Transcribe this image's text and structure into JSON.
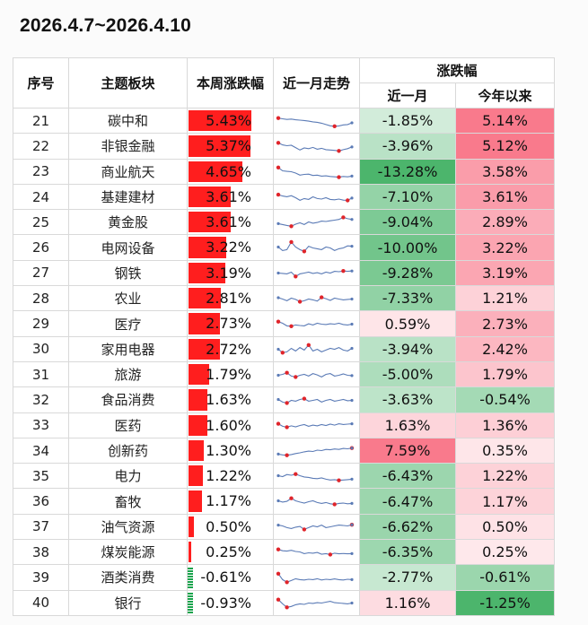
{
  "title": "2026.4.7~2026.4.10",
  "headers": {
    "index": "序号",
    "theme": "主题板块",
    "week": "本周涨跌幅",
    "trend": "近一月走势",
    "change_group": "涨跌幅",
    "month": "近一月",
    "ytd": "今年以来"
  },
  "rows": [
    {
      "index": "21",
      "theme": "碳中和",
      "week": "5.43%",
      "month": "-1.85%",
      "ytd": "5.14%"
    },
    {
      "index": "22",
      "theme": "非银金融",
      "week": "5.37%",
      "month": "-3.96%",
      "ytd": "5.12%"
    },
    {
      "index": "23",
      "theme": "商业航天",
      "week": "4.65%",
      "month": "-13.28%",
      "ytd": "3.58%"
    },
    {
      "index": "24",
      "theme": "基建建材",
      "week": "3.61%",
      "month": "-7.10%",
      "ytd": "3.61%"
    },
    {
      "index": "25",
      "theme": "黄金股",
      "week": "3.61%",
      "month": "-9.04%",
      "ytd": "2.89%"
    },
    {
      "index": "26",
      "theme": "电网设备",
      "week": "3.22%",
      "month": "-10.00%",
      "ytd": "3.22%"
    },
    {
      "index": "27",
      "theme": "钢铁",
      "week": "3.19%",
      "month": "-9.28%",
      "ytd": "3.19%"
    },
    {
      "index": "28",
      "theme": "农业",
      "week": "2.81%",
      "month": "-7.33%",
      "ytd": "1.21%"
    },
    {
      "index": "29",
      "theme": "医疗",
      "week": "2.73%",
      "month": "0.59%",
      "ytd": "2.73%"
    },
    {
      "index": "30",
      "theme": "家用电器",
      "week": "2.72%",
      "month": "-3.94%",
      "ytd": "2.42%"
    },
    {
      "index": "31",
      "theme": "旅游",
      "week": "1.79%",
      "month": "-5.00%",
      "ytd": "1.79%"
    },
    {
      "index": "32",
      "theme": "食品消费",
      "week": "1.63%",
      "month": "-3.63%",
      "ytd": "-0.54%"
    },
    {
      "index": "33",
      "theme": "医药",
      "week": "1.60%",
      "month": "1.63%",
      "ytd": "1.36%"
    },
    {
      "index": "34",
      "theme": "创新药",
      "week": "1.30%",
      "month": "7.59%",
      "ytd": "0.35%"
    },
    {
      "index": "35",
      "theme": "电力",
      "week": "1.22%",
      "month": "-6.43%",
      "ytd": "1.22%"
    },
    {
      "index": "36",
      "theme": "畜牧",
      "week": "1.17%",
      "month": "-6.47%",
      "ytd": "1.17%"
    },
    {
      "index": "37",
      "theme": "油气资源",
      "week": "0.50%",
      "month": "-6.62%",
      "ytd": "0.50%"
    },
    {
      "index": "38",
      "theme": "煤炭能源",
      "week": "0.25%",
      "month": "-6.35%",
      "ytd": "0.25%"
    },
    {
      "index": "39",
      "theme": "酒类消费",
      "week": "-0.61%",
      "month": "-2.77%",
      "ytd": "-0.61%"
    },
    {
      "index": "40",
      "theme": "银行",
      "week": "-0.93%",
      "month": "1.16%",
      "ytd": "-1.25%"
    }
  ],
  "chart_data": {
    "type": "table",
    "title": "2026.4.7~2026.4.10",
    "columns": [
      "序号",
      "主题板块",
      "本周涨跌幅",
      "近一月走势",
      "近一月",
      "今年以来"
    ],
    "column_groups": [
      {
        "label": "涨跌幅",
        "columns": [
          "近一月",
          "今年以来"
        ]
      }
    ],
    "categories": [
      "碳中和",
      "非银金融",
      "商业航天",
      "基建建材",
      "黄金股",
      "电网设备",
      "钢铁",
      "农业",
      "医疗",
      "家用电器",
      "旅游",
      "食品消费",
      "医药",
      "创新药",
      "电力",
      "畜牧",
      "油气资源",
      "煤炭能源",
      "酒类消费",
      "银行"
    ],
    "series": [
      {
        "name": "本周涨跌幅",
        "unit": "%",
        "values": [
          5.43,
          5.37,
          4.65,
          3.61,
          3.61,
          3.22,
          3.19,
          2.81,
          2.73,
          2.72,
          1.79,
          1.63,
          1.6,
          1.3,
          1.22,
          1.17,
          0.5,
          0.25,
          -0.61,
          -0.93
        ]
      },
      {
        "name": "近一月",
        "unit": "%",
        "values": [
          -1.85,
          -3.96,
          -13.28,
          -7.1,
          -9.04,
          -10.0,
          -9.28,
          -7.33,
          0.59,
          -3.94,
          -5.0,
          -3.63,
          1.63,
          7.59,
          -6.43,
          -6.47,
          -6.62,
          -6.35,
          -2.77,
          1.16
        ]
      },
      {
        "name": "今年以来",
        "unit": "%",
        "values": [
          5.14,
          5.12,
          3.58,
          3.61,
          2.89,
          3.22,
          3.19,
          1.21,
          2.73,
          2.42,
          1.79,
          -0.54,
          1.36,
          0.35,
          1.22,
          1.17,
          0.5,
          0.25,
          -0.61,
          -1.25
        ]
      }
    ],
    "sparklines": {
      "name": "近一月走势",
      "points_per_row": 18,
      "rows": [
        [
          0.7,
          0.66,
          0.62,
          0.64,
          0.6,
          0.58,
          0.56,
          0.52,
          0.48,
          0.45,
          0.4,
          0.32,
          0.25,
          0.22,
          0.24,
          0.3,
          0.32,
          0.42
        ],
        [
          0.72,
          0.6,
          0.55,
          0.58,
          0.44,
          0.3,
          0.42,
          0.38,
          0.45,
          0.35,
          0.4,
          0.32,
          0.3,
          0.28,
          0.25,
          0.32,
          0.38,
          0.48
        ],
        [
          0.75,
          0.55,
          0.52,
          0.5,
          0.42,
          0.3,
          0.34,
          0.36,
          0.28,
          0.3,
          0.24,
          0.26,
          0.22,
          0.2,
          0.18,
          0.22,
          0.2,
          0.24
        ],
        [
          0.68,
          0.6,
          0.56,
          0.62,
          0.5,
          0.35,
          0.45,
          0.4,
          0.55,
          0.45,
          0.42,
          0.5,
          0.4,
          0.38,
          0.42,
          0.36,
          0.34,
          0.48
        ],
        [
          0.45,
          0.4,
          0.35,
          0.3,
          0.42,
          0.5,
          0.4,
          0.55,
          0.48,
          0.52,
          0.6,
          0.58,
          0.62,
          0.66,
          0.7,
          0.82,
          0.74,
          0.7
        ],
        [
          0.55,
          0.35,
          0.4,
          0.85,
          0.55,
          0.4,
          0.3,
          0.6,
          0.5,
          0.45,
          0.4,
          0.55,
          0.5,
          0.35,
          0.45,
          0.5,
          0.62,
          0.6
        ],
        [
          0.5,
          0.48,
          0.45,
          0.55,
          0.3,
          0.45,
          0.5,
          0.55,
          0.48,
          0.52,
          0.45,
          0.55,
          0.5,
          0.6,
          0.58,
          0.62,
          0.6,
          0.62
        ],
        [
          0.58,
          0.5,
          0.4,
          0.55,
          0.48,
          0.35,
          0.4,
          0.5,
          0.45,
          0.38,
          0.6,
          0.52,
          0.42,
          0.55,
          0.5,
          0.45,
          0.48,
          0.5
        ],
        [
          0.65,
          0.55,
          0.4,
          0.38,
          0.45,
          0.42,
          0.4,
          0.52,
          0.45,
          0.55,
          0.5,
          0.48,
          0.52,
          0.5,
          0.55,
          0.48,
          0.45,
          0.5
        ],
        [
          0.5,
          0.3,
          0.35,
          0.55,
          0.4,
          0.6,
          0.45,
          0.75,
          0.4,
          0.5,
          0.35,
          0.45,
          0.55,
          0.5,
          0.6,
          0.45,
          0.4,
          0.55
        ],
        [
          0.5,
          0.55,
          0.65,
          0.45,
          0.4,
          0.5,
          0.55,
          0.45,
          0.6,
          0.52,
          0.4,
          0.55,
          0.6,
          0.45,
          0.5,
          0.58,
          0.5,
          0.48
        ],
        [
          0.55,
          0.4,
          0.35,
          0.5,
          0.45,
          0.55,
          0.6,
          0.45,
          0.5,
          0.55,
          0.4,
          0.5,
          0.55,
          0.45,
          0.5,
          0.55,
          0.48,
          0.5
        ],
        [
          0.6,
          0.45,
          0.4,
          0.48,
          0.42,
          0.5,
          0.55,
          0.45,
          0.52,
          0.48,
          0.55,
          0.5,
          0.58,
          0.52,
          0.6,
          0.56,
          0.58,
          0.6
        ],
        [
          0.35,
          0.3,
          0.28,
          0.32,
          0.38,
          0.42,
          0.48,
          0.52,
          0.5,
          0.58,
          0.55,
          0.62,
          0.6,
          0.65,
          0.62,
          0.68,
          0.66,
          0.7
        ],
        [
          0.55,
          0.5,
          0.62,
          0.58,
          0.65,
          0.55,
          0.48,
          0.45,
          0.4,
          0.38,
          0.42,
          0.35,
          0.3,
          0.32,
          0.28,
          0.3,
          0.32,
          0.35
        ],
        [
          0.55,
          0.48,
          0.52,
          0.7,
          0.55,
          0.48,
          0.42,
          0.5,
          0.55,
          0.45,
          0.4,
          0.45,
          0.38,
          0.35,
          0.4,
          0.42,
          0.38,
          0.4
        ],
        [
          0.6,
          0.55,
          0.45,
          0.4,
          0.48,
          0.52,
          0.35,
          0.45,
          0.55,
          0.5,
          0.6,
          0.45,
          0.5,
          0.55,
          0.6,
          0.58,
          0.55,
          0.62
        ],
        [
          0.7,
          0.62,
          0.6,
          0.65,
          0.58,
          0.55,
          0.45,
          0.5,
          0.48,
          0.52,
          0.42,
          0.45,
          0.4,
          0.48,
          0.44,
          0.46,
          0.44,
          0.45
        ],
        [
          0.75,
          0.4,
          0.25,
          0.35,
          0.45,
          0.4,
          0.38,
          0.42,
          0.4,
          0.45,
          0.38,
          0.42,
          0.4,
          0.44,
          0.4,
          0.38,
          0.42,
          0.4
        ],
        [
          0.7,
          0.45,
          0.25,
          0.3,
          0.4,
          0.45,
          0.42,
          0.5,
          0.48,
          0.52,
          0.5,
          0.55,
          0.6,
          0.52,
          0.5,
          0.48,
          0.45,
          0.5
        ]
      ]
    }
  }
}
